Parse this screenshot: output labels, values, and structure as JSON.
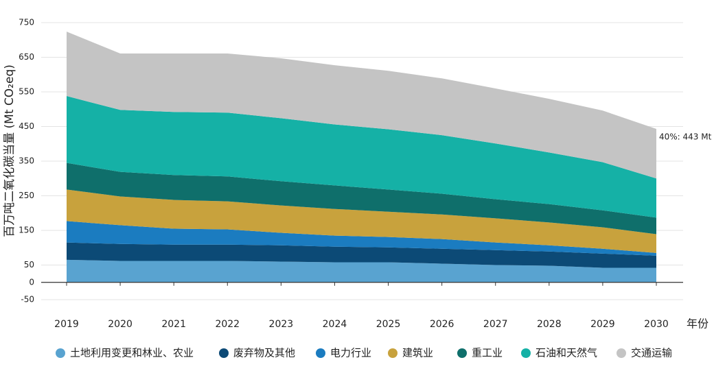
{
  "chart_data": {
    "type": "stacked_area",
    "y_label": "百万吨二氧化碳当量 (Mt CO₂eq)",
    "x_label": "年份",
    "annotation": "40%: 443 Mt",
    "categories": [
      "2019",
      "2020",
      "2021",
      "2022",
      "2023",
      "2024",
      "2025",
      "2026",
      "2027",
      "2028",
      "2029",
      "2030"
    ],
    "series": [
      {
        "name": "土地利用变更和林业、农业",
        "color": "#59a3d0",
        "values": [
          65,
          62,
          62,
          62,
          60,
          58,
          58,
          54,
          50,
          48,
          42,
          42
        ]
      },
      {
        "name": "废弃物及其他",
        "color": "#0c4a76",
        "values": [
          50,
          49,
          47,
          47,
          47,
          45,
          43,
          43,
          43,
          41,
          41,
          35
        ]
      },
      {
        "name": "电力行业",
        "color": "#1b7cc0",
        "values": [
          62,
          54,
          46,
          44,
          36,
          32,
          30,
          28,
          22,
          18,
          14,
          8
        ]
      },
      {
        "name": "建筑业",
        "color": "#c8a23d",
        "values": [
          91,
          83,
          83,
          81,
          79,
          77,
          73,
          71,
          70,
          66,
          62,
          54
        ]
      },
      {
        "name": "重工业",
        "color": "#0f6f6b",
        "values": [
          77,
          71,
          72,
          72,
          70,
          68,
          64,
          60,
          55,
          53,
          49,
          48
        ]
      },
      {
        "name": "石油和天然气",
        "color": "#15b1a6",
        "values": [
          193,
          179,
          182,
          184,
          182,
          176,
          174,
          169,
          161,
          149,
          139,
          113
        ]
      },
      {
        "name": "交通运输",
        "color": "#c4c4c4",
        "values": [
          186,
          163,
          169,
          171,
          173,
          171,
          169,
          164,
          159,
          155,
          149,
          143
        ]
      }
    ],
    "ylim": [
      -50,
      750
    ],
    "yticks": [
      -50,
      0,
      50,
      150,
      250,
      350,
      450,
      550,
      650,
      750
    ],
    "grid": true
  }
}
